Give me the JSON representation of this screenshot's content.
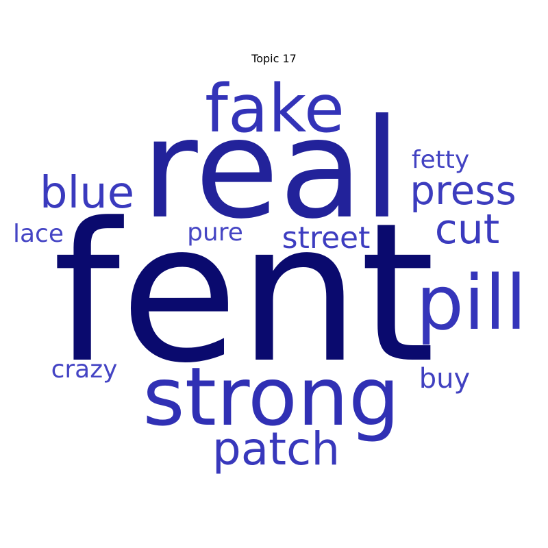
{
  "title": "Topic 17",
  "words": [
    {
      "text": "fent",
      "color": "#0a0a6e"
    },
    {
      "text": "real",
      "color": "#22229a"
    },
    {
      "text": "strong",
      "color": "#3030b4"
    },
    {
      "text": "fake",
      "color": "#3333b8"
    },
    {
      "text": "pill",
      "color": "#3535ba"
    },
    {
      "text": "patch",
      "color": "#3838bc"
    },
    {
      "text": "blue",
      "color": "#3a3abe"
    },
    {
      "text": "press",
      "color": "#3c3cbe"
    },
    {
      "text": "cut",
      "color": "#3a3abe"
    },
    {
      "text": "street",
      "color": "#3d3dc0"
    },
    {
      "text": "buy",
      "color": "#4040c0"
    },
    {
      "text": "fetty",
      "color": "#4242c2"
    },
    {
      "text": "lace",
      "color": "#4444c4"
    },
    {
      "text": "pure",
      "color": "#4646c4"
    },
    {
      "text": "crazy",
      "color": "#4444c4"
    }
  ]
}
